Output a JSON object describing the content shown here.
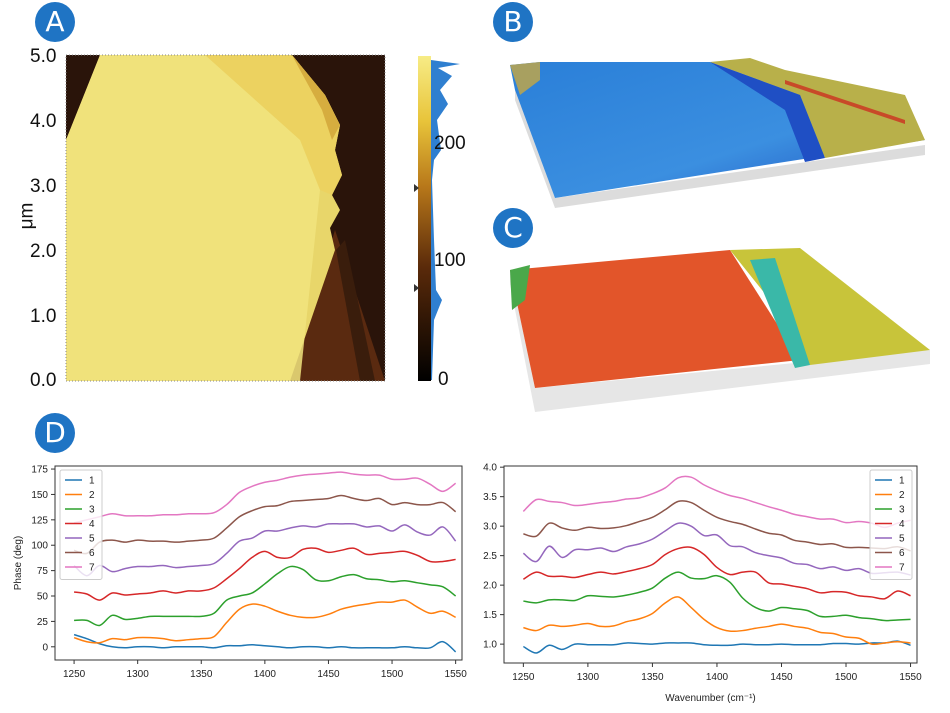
{
  "panels": {
    "a": "A",
    "b": "B",
    "c": "C",
    "d": "D"
  },
  "afm_map": {
    "ylabel": "μm",
    "yticks": [
      "5.0",
      "4.0",
      "3.0",
      "2.0",
      "1.0",
      "0.0"
    ],
    "colorbar_ticks": [
      "200",
      "100",
      "0"
    ],
    "colors": {
      "bright": "#f3e37a",
      "mid": "#8a4a12",
      "dark": "#2a140a",
      "histogram": "#2f7fd0"
    }
  },
  "chart_data": [
    {
      "type": "line",
      "title": "",
      "xlabel": "",
      "ylabel": "Phase (deg)",
      "xlim": [
        1235,
        1555
      ],
      "ylim": [
        -13,
        178
      ],
      "xticks": [
        1250,
        1300,
        1350,
        1400,
        1450,
        1500,
        1550
      ],
      "yticks": [
        0,
        25,
        50,
        75,
        100,
        125,
        150,
        175
      ],
      "legend": "top-left",
      "grid": false,
      "x": [
        1250,
        1260,
        1270,
        1280,
        1290,
        1300,
        1310,
        1320,
        1330,
        1340,
        1350,
        1360,
        1370,
        1380,
        1390,
        1400,
        1410,
        1420,
        1430,
        1440,
        1450,
        1460,
        1470,
        1480,
        1490,
        1500,
        1510,
        1520,
        1530,
        1540,
        1550
      ],
      "series": [
        {
          "name": "1",
          "color": "#1f77b4",
          "values": [
            12,
            8,
            3,
            0,
            -1,
            0,
            0,
            -1,
            0,
            0,
            0,
            -1,
            1,
            1,
            2,
            1,
            0,
            -1,
            0,
            0,
            -1,
            0,
            -1,
            -1,
            -1,
            -1,
            0,
            -1,
            -1,
            5,
            -5
          ]
        },
        {
          "name": "2",
          "color": "#ff7f0e",
          "values": [
            9,
            5,
            4,
            8,
            7,
            9,
            9,
            8,
            6,
            7,
            8,
            10,
            24,
            37,
            42,
            40,
            35,
            31,
            29,
            29,
            32,
            37,
            40,
            42,
            44,
            44,
            46,
            39,
            33,
            35,
            29
          ]
        },
        {
          "name": "3",
          "color": "#2ca02c",
          "values": [
            26,
            26,
            21,
            31,
            27,
            28,
            30,
            30,
            30,
            30,
            30,
            33,
            46,
            50,
            53,
            62,
            72,
            79,
            76,
            66,
            65,
            69,
            71,
            67,
            66,
            64,
            65,
            63,
            61,
            59,
            50
          ]
        },
        {
          "name": "4",
          "color": "#d62728",
          "values": [
            54,
            52,
            46,
            53,
            51,
            52,
            53,
            55,
            53,
            55,
            55,
            58,
            67,
            77,
            88,
            94,
            88,
            88,
            96,
            97,
            93,
            95,
            97,
            91,
            92,
            93,
            94,
            90,
            84,
            84,
            86
          ]
        },
        {
          "name": "5",
          "color": "#9467bd",
          "values": [
            80,
            70,
            80,
            74,
            77,
            79,
            79,
            80,
            78,
            79,
            80,
            82,
            92,
            104,
            107,
            114,
            114,
            117,
            119,
            118,
            121,
            121,
            121,
            118,
            119,
            114,
            120,
            113,
            110,
            118,
            104
          ]
        },
        {
          "name": "6",
          "color": "#8c564b",
          "values": [
            95,
            92,
            103,
            105,
            103,
            105,
            104,
            104,
            103,
            104,
            105,
            107,
            117,
            128,
            134,
            138,
            139,
            143,
            144,
            145,
            146,
            149,
            146,
            144,
            146,
            140,
            142,
            140,
            140,
            142,
            133
          ]
        },
        {
          "name": "7",
          "color": "#e377c2",
          "values": [
            122,
            125,
            128,
            131,
            129,
            129,
            129,
            130,
            130,
            131,
            131,
            132,
            140,
            152,
            158,
            162,
            164,
            167,
            169,
            170,
            171,
            172,
            170,
            169,
            169,
            165,
            165,
            166,
            160,
            153,
            161
          ]
        }
      ]
    },
    {
      "type": "line",
      "title": "",
      "xlabel": "Wavenumber (cm⁻¹)",
      "ylabel": "",
      "xlim": [
        1235,
        1555
      ],
      "ylim": [
        0.68,
        4.02
      ],
      "xticks": [
        1250,
        1300,
        1350,
        1400,
        1450,
        1500,
        1550
      ],
      "yticks": [
        "1.0",
        "1.5",
        "2.0",
        "2.5",
        "3.0",
        "3.5",
        "4.0"
      ],
      "legend": "top-right",
      "grid": false,
      "x": [
        1250,
        1260,
        1270,
        1280,
        1290,
        1300,
        1310,
        1320,
        1330,
        1340,
        1350,
        1360,
        1370,
        1380,
        1390,
        1400,
        1410,
        1420,
        1430,
        1440,
        1450,
        1460,
        1470,
        1480,
        1490,
        1500,
        1510,
        1520,
        1530,
        1540,
        1550
      ],
      "series": [
        {
          "name": "1",
          "color": "#1f77b4",
          "values": [
            0.96,
            0.85,
            0.98,
            0.91,
            1.0,
            0.99,
            0.99,
            0.99,
            1.02,
            1.01,
            1.0,
            1.02,
            1.02,
            1.02,
            0.99,
            0.98,
            0.98,
            1.0,
            0.99,
            0.99,
            1.0,
            0.99,
            0.99,
            0.99,
            1.01,
            1.01,
            1.0,
            1.02,
            1.02,
            1.05,
            0.98
          ]
        },
        {
          "name": "2",
          "color": "#ff7f0e",
          "values": [
            1.28,
            1.23,
            1.32,
            1.3,
            1.32,
            1.35,
            1.3,
            1.31,
            1.38,
            1.43,
            1.52,
            1.7,
            1.8,
            1.62,
            1.42,
            1.28,
            1.22,
            1.23,
            1.27,
            1.3,
            1.34,
            1.3,
            1.27,
            1.2,
            1.18,
            1.12,
            1.1,
            1.0,
            1.02,
            1.04,
            1.02
          ]
        },
        {
          "name": "3",
          "color": "#2ca02c",
          "values": [
            1.73,
            1.7,
            1.75,
            1.75,
            1.74,
            1.82,
            1.81,
            1.8,
            1.83,
            1.88,
            1.95,
            2.12,
            2.22,
            2.12,
            2.11,
            2.16,
            2.05,
            1.78,
            1.62,
            1.56,
            1.62,
            1.6,
            1.57,
            1.47,
            1.47,
            1.49,
            1.45,
            1.43,
            1.4,
            1.41,
            1.42
          ]
        },
        {
          "name": "4",
          "color": "#d62728",
          "values": [
            2.1,
            2.22,
            2.15,
            2.15,
            2.13,
            2.18,
            2.22,
            2.19,
            2.23,
            2.28,
            2.35,
            2.52,
            2.62,
            2.64,
            2.52,
            2.3,
            2.18,
            2.22,
            2.22,
            2.04,
            2.02,
            1.98,
            1.94,
            1.87,
            1.89,
            1.88,
            1.82,
            1.8,
            1.77,
            1.9,
            1.82
          ]
        },
        {
          "name": "5",
          "color": "#9467bd",
          "values": [
            2.54,
            2.4,
            2.66,
            2.47,
            2.6,
            2.6,
            2.63,
            2.57,
            2.65,
            2.7,
            2.78,
            2.92,
            3.05,
            3.0,
            2.84,
            2.85,
            2.67,
            2.65,
            2.55,
            2.5,
            2.46,
            2.37,
            2.35,
            2.28,
            2.31,
            2.25,
            2.28,
            2.2,
            2.21,
            2.22,
            2.17
          ]
        },
        {
          "name": "6",
          "color": "#8c564b",
          "values": [
            2.87,
            2.83,
            3.05,
            2.97,
            2.93,
            2.98,
            2.96,
            2.97,
            3.01,
            3.08,
            3.15,
            3.28,
            3.42,
            3.4,
            3.27,
            3.15,
            3.08,
            3.03,
            2.95,
            2.88,
            2.85,
            2.76,
            2.73,
            2.69,
            2.7,
            2.64,
            2.64,
            2.63,
            2.62,
            2.65,
            2.58
          ]
        },
        {
          "name": "7",
          "color": "#e377c2",
          "values": [
            3.25,
            3.45,
            3.42,
            3.4,
            3.35,
            3.37,
            3.4,
            3.42,
            3.46,
            3.48,
            3.55,
            3.65,
            3.82,
            3.83,
            3.7,
            3.6,
            3.52,
            3.47,
            3.4,
            3.33,
            3.27,
            3.2,
            3.16,
            3.12,
            3.12,
            3.06,
            3.08,
            3.05,
            2.98,
            3.05,
            3.1
          ]
        }
      ]
    }
  ]
}
